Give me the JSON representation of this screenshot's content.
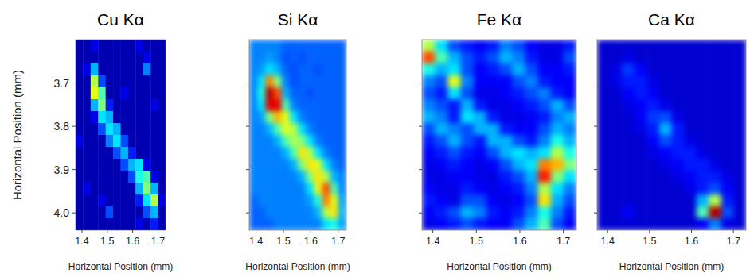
{
  "chart_data": [
    {
      "type": "heatmap",
      "title": "Cu Kα",
      "x_label": "Horizontal Position (mm)",
      "y_label": "Horizontal Position (mm)",
      "xlim": [
        1.375,
        1.73
      ],
      "ylim": [
        3.6,
        4.04
      ],
      "xticks": [
        1.4,
        1.5,
        1.6,
        1.7
      ],
      "yticks": [
        3.7,
        3.8,
        3.9,
        {
          "value": 4,
          "label": "4.0"
        }
      ],
      "zlim": [
        0,
        1
      ],
      "z": [
        [
          0.05,
          0.05,
          0.1,
          0.05,
          0.05,
          0.05,
          0.05,
          0.05,
          0.1,
          0.05,
          0.05,
          0.05
        ],
        [
          0.05,
          0.05,
          0.05,
          0.05,
          0.05,
          0.05,
          0.05,
          0.05,
          0.05,
          0.1,
          0.05,
          0.05
        ],
        [
          0.05,
          0.1,
          0.3,
          0.05,
          0.05,
          0.05,
          0.05,
          0.05,
          0.05,
          0.25,
          0.05,
          0.05
        ],
        [
          0.05,
          0.05,
          0.55,
          0.2,
          0.05,
          0.05,
          0.05,
          0.05,
          0.05,
          0.05,
          0.05,
          0.05
        ],
        [
          0.05,
          0.05,
          0.6,
          0.45,
          0.05,
          0.05,
          0.1,
          0.05,
          0.05,
          0.05,
          0.05,
          0.05
        ],
        [
          0.05,
          0.05,
          0.3,
          0.5,
          0.15,
          0.05,
          0.05,
          0.05,
          0.05,
          0.05,
          0.1,
          0.05
        ],
        [
          0.05,
          0.05,
          0.1,
          0.35,
          0.3,
          0.05,
          0.05,
          0.05,
          0.05,
          0.05,
          0.05,
          0.05
        ],
        [
          0.05,
          0.05,
          0.05,
          0.2,
          0.35,
          0.3,
          0.05,
          0.05,
          0.05,
          0.05,
          0.05,
          0.05
        ],
        [
          0.1,
          0.05,
          0.05,
          0.05,
          0.25,
          0.35,
          0.2,
          0.05,
          0.05,
          0.05,
          0.05,
          0.05
        ],
        [
          0.05,
          0.05,
          0.05,
          0.05,
          0.05,
          0.2,
          0.3,
          0.15,
          0.05,
          0.05,
          0.05,
          0.05
        ],
        [
          0.05,
          0.05,
          0.05,
          0.05,
          0.05,
          0.05,
          0.2,
          0.3,
          0.35,
          0.1,
          0.05,
          0.05
        ],
        [
          0.05,
          0.05,
          0.05,
          0.05,
          0.05,
          0.05,
          0.05,
          0.2,
          0.4,
          0.45,
          0.1,
          0.05
        ],
        [
          0.05,
          0.1,
          0.05,
          0.05,
          0.05,
          0.05,
          0.05,
          0.05,
          0.3,
          0.5,
          0.3,
          0.05
        ],
        [
          0.05,
          0.05,
          0.05,
          0.1,
          0.05,
          0.05,
          0.05,
          0.05,
          0.15,
          0.35,
          0.55,
          0.1
        ],
        [
          0.05,
          0.05,
          0.05,
          0.05,
          0.2,
          0.05,
          0.05,
          0.05,
          0.05,
          0.2,
          0.3,
          0.05
        ],
        [
          0.05,
          0.05,
          0.05,
          0.05,
          0.05,
          0.05,
          0.05,
          0.05,
          0.1,
          0.05,
          0.15,
          0.05
        ]
      ]
    },
    {
      "type": "heatmap",
      "title": "Si Kα",
      "x_label": "Horizontal Position (mm)",
      "tick_labels": "x",
      "xlim": [
        1.375,
        1.73
      ],
      "ylim": [
        3.6,
        4.04
      ],
      "xticks": [
        1.4,
        1.5,
        1.6,
        1.7
      ],
      "yticks": [
        3.7,
        3.8,
        3.9,
        4
      ],
      "zlim": [
        0,
        1
      ],
      "z": [
        [
          0.25,
          0.25,
          0.25,
          0.25,
          0.22,
          0.22,
          0.22,
          0.22,
          0.22,
          0.22,
          0.22,
          0.22
        ],
        [
          0.25,
          0.25,
          0.28,
          0.25,
          0.2,
          0.22,
          0.2,
          0.22,
          0.22,
          0.22,
          0.22,
          0.22
        ],
        [
          0.25,
          0.28,
          0.35,
          0.3,
          0.22,
          0.2,
          0.22,
          0.22,
          0.2,
          0.22,
          0.22,
          0.22
        ],
        [
          0.25,
          0.35,
          0.75,
          0.5,
          0.25,
          0.2,
          0.22,
          0.22,
          0.22,
          0.22,
          0.22,
          0.22
        ],
        [
          0.25,
          0.4,
          0.95,
          0.8,
          0.3,
          0.22,
          0.22,
          0.2,
          0.22,
          0.22,
          0.22,
          0.22
        ],
        [
          0.25,
          0.35,
          0.9,
          0.9,
          0.45,
          0.25,
          0.22,
          0.22,
          0.22,
          0.22,
          0.22,
          0.22
        ],
        [
          0.25,
          0.28,
          0.5,
          0.7,
          0.6,
          0.35,
          0.25,
          0.22,
          0.22,
          0.22,
          0.22,
          0.22
        ],
        [
          0.25,
          0.25,
          0.3,
          0.45,
          0.6,
          0.55,
          0.35,
          0.25,
          0.22,
          0.22,
          0.22,
          0.22
        ],
        [
          0.25,
          0.25,
          0.25,
          0.3,
          0.45,
          0.55,
          0.5,
          0.35,
          0.25,
          0.22,
          0.22,
          0.22
        ],
        [
          0.25,
          0.25,
          0.25,
          0.25,
          0.3,
          0.45,
          0.65,
          0.55,
          0.35,
          0.25,
          0.22,
          0.22
        ],
        [
          0.25,
          0.25,
          0.25,
          0.25,
          0.25,
          0.3,
          0.5,
          0.65,
          0.6,
          0.35,
          0.25,
          0.22
        ],
        [
          0.25,
          0.25,
          0.25,
          0.25,
          0.25,
          0.25,
          0.3,
          0.5,
          0.65,
          0.55,
          0.3,
          0.25
        ],
        [
          0.25,
          0.25,
          0.25,
          0.25,
          0.25,
          0.25,
          0.25,
          0.35,
          0.6,
          0.8,
          0.45,
          0.25
        ],
        [
          0.22,
          0.25,
          0.25,
          0.25,
          0.25,
          0.25,
          0.25,
          0.28,
          0.4,
          0.75,
          0.6,
          0.28
        ],
        [
          0.22,
          0.22,
          0.25,
          0.25,
          0.25,
          0.25,
          0.25,
          0.25,
          0.3,
          0.55,
          0.65,
          0.3
        ],
        [
          0.22,
          0.22,
          0.22,
          0.25,
          0.25,
          0.25,
          0.25,
          0.25,
          0.25,
          0.35,
          0.4,
          0.28
        ]
      ]
    },
    {
      "type": "heatmap",
      "title": "Fe Kα",
      "x_label": "Horizontal Position (mm)",
      "tick_labels": "x",
      "xlim": [
        1.375,
        1.73
      ],
      "ylim": [
        3.6,
        4.04
      ],
      "xticks": [
        1.4,
        1.5,
        1.6,
        1.7
      ],
      "yticks": [
        3.7,
        3.8,
        3.9,
        4
      ],
      "zlim": [
        0,
        1
      ],
      "z": [
        [
          0.55,
          0.35,
          0.2,
          0.15,
          0.12,
          0.15,
          0.25,
          0.2,
          0.12,
          0.1,
          0.1,
          0.15
        ],
        [
          0.8,
          0.45,
          0.3,
          0.2,
          0.15,
          0.2,
          0.3,
          0.25,
          0.15,
          0.1,
          0.1,
          0.2
        ],
        [
          0.4,
          0.3,
          0.35,
          0.2,
          0.12,
          0.15,
          0.2,
          0.3,
          0.2,
          0.12,
          0.12,
          0.15
        ],
        [
          0.25,
          0.2,
          0.6,
          0.25,
          0.12,
          0.12,
          0.12,
          0.2,
          0.25,
          0.15,
          0.12,
          0.12
        ],
        [
          0.2,
          0.15,
          0.35,
          0.2,
          0.1,
          0.1,
          0.12,
          0.15,
          0.2,
          0.25,
          0.15,
          0.12
        ],
        [
          0.25,
          0.2,
          0.15,
          0.3,
          0.15,
          0.1,
          0.1,
          0.12,
          0.15,
          0.2,
          0.3,
          0.2
        ],
        [
          0.3,
          0.25,
          0.15,
          0.35,
          0.3,
          0.15,
          0.1,
          0.1,
          0.12,
          0.15,
          0.25,
          0.3
        ],
        [
          0.2,
          0.3,
          0.25,
          0.2,
          0.3,
          0.3,
          0.15,
          0.12,
          0.12,
          0.2,
          0.3,
          0.25
        ],
        [
          0.15,
          0.2,
          0.3,
          0.2,
          0.15,
          0.3,
          0.3,
          0.2,
          0.15,
          0.25,
          0.4,
          0.3
        ],
        [
          0.12,
          0.15,
          0.2,
          0.15,
          0.12,
          0.2,
          0.3,
          0.35,
          0.3,
          0.35,
          0.55,
          0.4
        ],
        [
          0.1,
          0.12,
          0.15,
          0.12,
          0.1,
          0.12,
          0.2,
          0.3,
          0.35,
          0.75,
          0.7,
          0.5
        ],
        [
          0.1,
          0.1,
          0.12,
          0.12,
          0.1,
          0.1,
          0.15,
          0.2,
          0.3,
          0.85,
          0.5,
          0.35
        ],
        [
          0.12,
          0.1,
          0.1,
          0.15,
          0.12,
          0.1,
          0.12,
          0.15,
          0.25,
          0.55,
          0.35,
          0.25
        ],
        [
          0.15,
          0.12,
          0.1,
          0.2,
          0.2,
          0.12,
          0.1,
          0.12,
          0.2,
          0.65,
          0.3,
          0.2
        ],
        [
          0.12,
          0.15,
          0.2,
          0.3,
          0.25,
          0.15,
          0.12,
          0.15,
          0.25,
          0.4,
          0.25,
          0.15
        ],
        [
          0.1,
          0.12,
          0.15,
          0.2,
          0.15,
          0.12,
          0.12,
          0.2,
          0.3,
          0.45,
          0.2,
          0.12
        ]
      ]
    },
    {
      "type": "heatmap",
      "title": "Ca Kα",
      "x_label": "Horizontal Position (mm)",
      "tick_labels": "x",
      "xlim": [
        1.375,
        1.73
      ],
      "ylim": [
        3.6,
        4.04
      ],
      "xticks": [
        1.4,
        1.5,
        1.6,
        1.7
      ],
      "yticks": [
        3.7,
        3.8,
        3.9,
        4
      ],
      "zlim": [
        0,
        1
      ],
      "z": [
        [
          0.08,
          0.08,
          0.08,
          0.08,
          0.08,
          0.08,
          0.08,
          0.08,
          0.08,
          0.08,
          0.08,
          0.08
        ],
        [
          0.08,
          0.08,
          0.1,
          0.08,
          0.08,
          0.08,
          0.08,
          0.08,
          0.08,
          0.08,
          0.08,
          0.08
        ],
        [
          0.08,
          0.1,
          0.18,
          0.12,
          0.08,
          0.08,
          0.08,
          0.08,
          0.08,
          0.08,
          0.08,
          0.08
        ],
        [
          0.08,
          0.1,
          0.15,
          0.15,
          0.1,
          0.08,
          0.08,
          0.08,
          0.08,
          0.08,
          0.08,
          0.08
        ],
        [
          0.08,
          0.08,
          0.12,
          0.15,
          0.12,
          0.08,
          0.08,
          0.08,
          0.08,
          0.08,
          0.08,
          0.08
        ],
        [
          0.08,
          0.08,
          0.1,
          0.12,
          0.15,
          0.1,
          0.08,
          0.08,
          0.08,
          0.08,
          0.08,
          0.08
        ],
        [
          0.08,
          0.08,
          0.08,
          0.12,
          0.18,
          0.2,
          0.1,
          0.08,
          0.08,
          0.08,
          0.08,
          0.08
        ],
        [
          0.08,
          0.08,
          0.08,
          0.1,
          0.15,
          0.3,
          0.15,
          0.08,
          0.08,
          0.08,
          0.08,
          0.08
        ],
        [
          0.08,
          0.08,
          0.08,
          0.08,
          0.12,
          0.2,
          0.15,
          0.1,
          0.08,
          0.08,
          0.08,
          0.08
        ],
        [
          0.08,
          0.08,
          0.08,
          0.08,
          0.1,
          0.12,
          0.15,
          0.15,
          0.1,
          0.08,
          0.08,
          0.08
        ],
        [
          0.08,
          0.08,
          0.08,
          0.08,
          0.08,
          0.1,
          0.12,
          0.15,
          0.15,
          0.1,
          0.08,
          0.08
        ],
        [
          0.08,
          0.08,
          0.08,
          0.08,
          0.08,
          0.08,
          0.1,
          0.12,
          0.15,
          0.15,
          0.1,
          0.08
        ],
        [
          0.08,
          0.08,
          0.08,
          0.08,
          0.08,
          0.08,
          0.08,
          0.1,
          0.15,
          0.2,
          0.12,
          0.08
        ],
        [
          0.08,
          0.08,
          0.08,
          0.08,
          0.08,
          0.08,
          0.08,
          0.08,
          0.3,
          0.55,
          0.15,
          0.08
        ],
        [
          0.08,
          0.08,
          0.12,
          0.08,
          0.08,
          0.08,
          0.08,
          0.08,
          0.45,
          0.95,
          0.2,
          0.08
        ],
        [
          0.08,
          0.08,
          0.08,
          0.08,
          0.08,
          0.08,
          0.08,
          0.08,
          0.12,
          0.25,
          0.1,
          0.08
        ]
      ]
    }
  ]
}
